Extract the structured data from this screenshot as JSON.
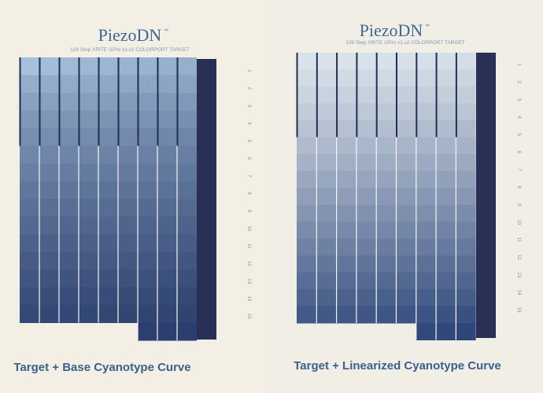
{
  "panels": [
    {
      "title": "PiezoDN",
      "trademark": "™",
      "subtitle": "129 Step XRITE i1Pro v1.v2 COLORPORT TARGET",
      "caption": "Target + Base Cyanotype Curve",
      "row_labels": [
        "1",
        "2",
        "3",
        "4",
        "5",
        "6",
        "7",
        "8",
        "9",
        "10",
        "11",
        "12",
        "13",
        "14",
        "15"
      ]
    },
    {
      "title": "PiezoDN",
      "trademark": "™",
      "subtitle": "129 Step XRITE i1Pro v1.v2 COLORPORT TARGET",
      "caption": "Target + Linearized Cyanotype Curve",
      "row_labels": [
        "1",
        "2",
        "3",
        "4",
        "5",
        "6",
        "7",
        "8",
        "9",
        "10",
        "11",
        "12",
        "13",
        "14",
        "15"
      ]
    }
  ]
}
